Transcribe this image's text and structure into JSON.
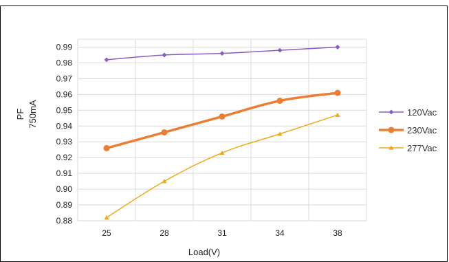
{
  "chart_data": {
    "type": "line",
    "title": "",
    "xlabel": "Load(V)",
    "ylabel_lines": [
      "PF",
      "750mA"
    ],
    "categories": [
      "25",
      "28",
      "31",
      "34",
      "38"
    ],
    "yticks": [
      "0.88",
      "0.89",
      "0.90",
      "0.91",
      "0.92",
      "0.93",
      "0.94",
      "0.95",
      "0.96",
      "0.97",
      "0.98",
      "0.99"
    ],
    "ylim": [
      0.88,
      0.995
    ],
    "grid": true,
    "legend_position": "right",
    "series": [
      {
        "name": "120Vac",
        "color": "#8b5cc4",
        "marker": "diamond",
        "width": 1.5,
        "values": [
          0.982,
          0.985,
          0.986,
          0.988,
          0.99
        ]
      },
      {
        "name": "230Vac",
        "color": "#ed7d31",
        "marker": "circle",
        "width": 3.5,
        "values": [
          0.926,
          0.936,
          0.946,
          0.956,
          0.961
        ]
      },
      {
        "name": "277Vac",
        "color": "#f0a818",
        "marker": "triangle",
        "width": 1.5,
        "values": [
          0.882,
          0.905,
          0.923,
          0.935,
          0.947
        ]
      }
    ]
  }
}
